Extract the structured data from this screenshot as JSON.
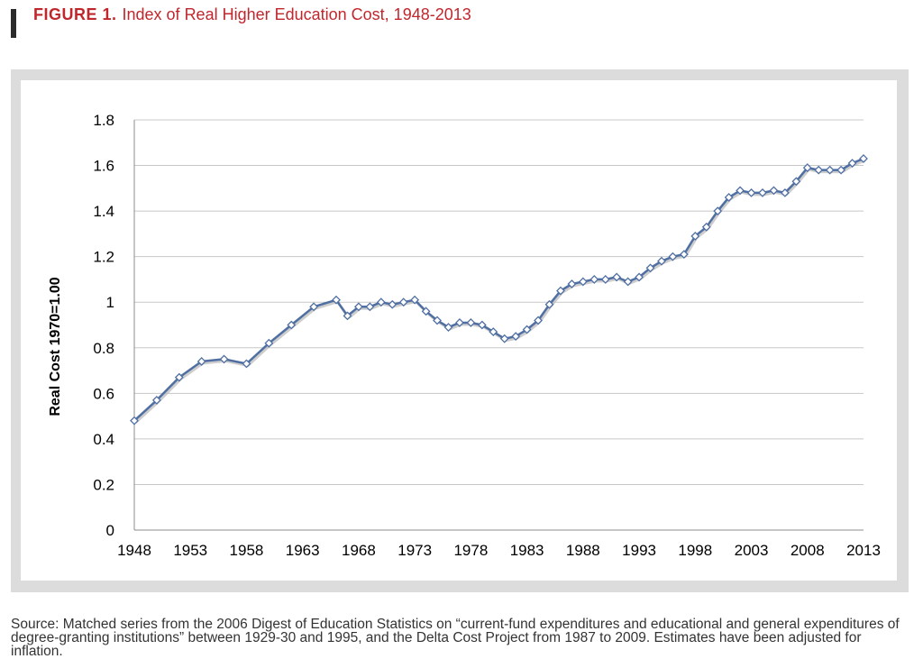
{
  "figure": {
    "label": "FIGURE 1.",
    "title": "Index of Real Higher Education Cost, 1948-2013"
  },
  "source_note": "Source: Matched series from the 2006 Digest of Education Statistics on “current-fund expenditures and educational and general expenditures of degree-granting institutions” between 1929-30 and 1995, and the Delta Cost Project from 1987 to 2009. Estimates have been adjusted for inflation.",
  "colors": {
    "title": "#c0272d",
    "line": "#4f6fa3",
    "marker_fill": "#ffffff",
    "grid": "#c8c8c8",
    "frame": "#dcdcdc"
  },
  "chart_data": {
    "type": "line",
    "title": "",
    "xlabel": "",
    "ylabel": "Real Cost 1970=1.00",
    "xlim": [
      1948,
      2013
    ],
    "ylim": [
      0,
      1.8
    ],
    "x_ticks": [
      1948,
      1953,
      1958,
      1963,
      1968,
      1973,
      1978,
      1983,
      1988,
      1993,
      1998,
      2003,
      2008,
      2013
    ],
    "y_ticks": [
      {
        "value": 0,
        "label": "0"
      },
      {
        "value": 0.2,
        "label": "0.2"
      },
      {
        "value": 0.4,
        "label": "0.4"
      },
      {
        "value": 0.6,
        "label": "0.6"
      },
      {
        "value": 0.8,
        "label": "0.8"
      },
      {
        "value": 1.0,
        "label": "1"
      },
      {
        "value": 1.2,
        "label": "1.2"
      },
      {
        "value": 1.4,
        "label": "1.4"
      },
      {
        "value": 1.6,
        "label": "1.6"
      },
      {
        "value": 1.8,
        "label": "1.8"
      }
    ],
    "grid": true,
    "legend": "none",
    "series": [
      {
        "x": [
          1948,
          1950,
          1952,
          1954,
          1956,
          1958,
          1960,
          1962,
          1964,
          1966,
          1967,
          1968,
          1969,
          1970,
          1971,
          1972,
          1973,
          1974,
          1975,
          1976,
          1977,
          1978,
          1979,
          1980,
          1981,
          1982,
          1983,
          1984,
          1985,
          1986,
          1987,
          1988,
          1989,
          1990,
          1991,
          1992,
          1993,
          1994,
          1995,
          1996,
          1997,
          1998,
          1999,
          2000,
          2001,
          2002,
          2003,
          2004,
          2005,
          2006,
          2007,
          2008,
          2009,
          2010,
          2011,
          2012,
          2013
        ],
        "values": [
          0.48,
          0.57,
          0.67,
          0.74,
          0.75,
          0.73,
          0.82,
          0.9,
          0.98,
          1.01,
          0.94,
          0.98,
          0.98,
          1.0,
          0.99,
          1.0,
          1.01,
          0.96,
          0.92,
          0.89,
          0.91,
          0.91,
          0.9,
          0.87,
          0.84,
          0.85,
          0.88,
          0.92,
          0.99,
          1.05,
          1.08,
          1.09,
          1.1,
          1.1,
          1.11,
          1.09,
          1.11,
          1.15,
          1.18,
          1.2,
          1.21,
          1.29,
          1.33,
          1.4,
          1.46,
          1.49,
          1.48,
          1.48,
          1.49,
          1.48,
          1.53,
          1.59,
          1.58,
          1.58,
          1.58,
          1.61,
          1.63
        ]
      }
    ]
  }
}
